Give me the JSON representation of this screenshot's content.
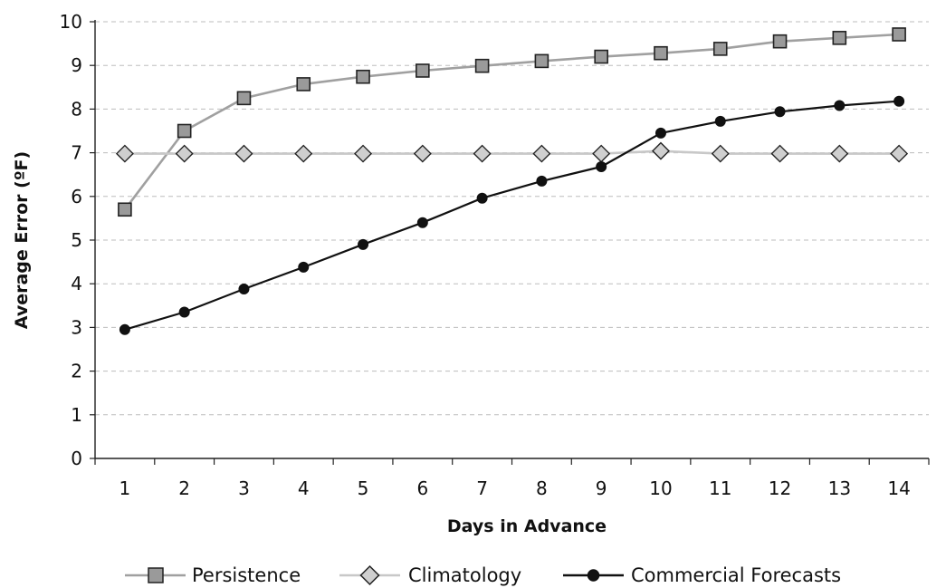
{
  "chart_data": {
    "type": "line",
    "title": "",
    "xlabel": "Days in Advance",
    "ylabel": "Average Error (ºF)",
    "categories": [
      "1",
      "2",
      "3",
      "4",
      "5",
      "6",
      "7",
      "8",
      "9",
      "10",
      "11",
      "12",
      "13",
      "14"
    ],
    "ylim": [
      0,
      10
    ],
    "yticks": [
      0,
      1,
      2,
      3,
      4,
      5,
      6,
      7,
      8,
      9,
      10
    ],
    "grid": true,
    "legend_position": "bottom",
    "series": [
      {
        "name": "Persistence",
        "marker": "square",
        "line_color": "#a0a0a0",
        "marker_fill": "#9a9a9a",
        "marker_stroke": "#222222",
        "values": [
          5.7,
          7.5,
          8.25,
          8.57,
          8.74,
          8.88,
          8.99,
          9.1,
          9.2,
          9.28,
          9.38,
          9.55,
          9.63,
          9.71
        ]
      },
      {
        "name": "Climatology",
        "marker": "diamond",
        "line_color": "#c8c8c8",
        "marker_fill": "#cfcfcf",
        "marker_stroke": "#222222",
        "values": [
          6.98,
          6.98,
          6.98,
          6.98,
          6.98,
          6.98,
          6.98,
          6.98,
          6.98,
          7.04,
          6.98,
          6.98,
          6.98,
          6.98
        ]
      },
      {
        "name": "Commercial Forecasts",
        "marker": "circle",
        "line_color": "#111111",
        "marker_fill": "#111111",
        "marker_stroke": "#111111",
        "values": [
          2.95,
          3.35,
          3.88,
          4.38,
          4.9,
          5.4,
          5.96,
          6.35,
          6.68,
          7.45,
          7.72,
          7.94,
          8.08,
          8.18
        ]
      }
    ]
  }
}
